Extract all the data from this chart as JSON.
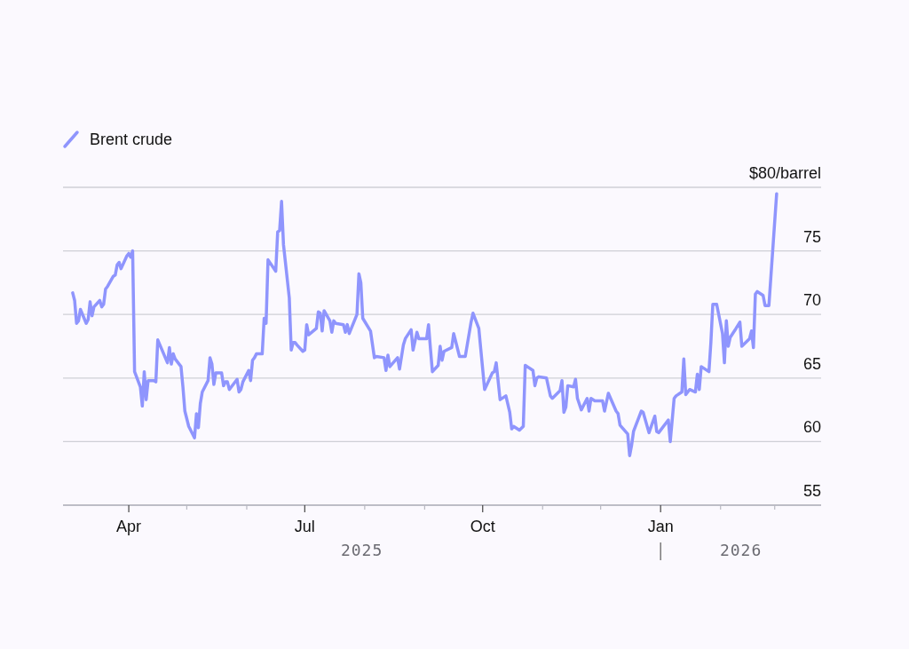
{
  "chart_data": {
    "type": "line",
    "legend": "top left",
    "grid": "y",
    "xlim": [
      "2025-02-26",
      "2026-03-25"
    ],
    "xticks": [
      {
        "value": "2025-04-01",
        "label": "Apr"
      },
      {
        "value": "2025-05-01",
        "label": null
      },
      {
        "value": "2025-06-01",
        "label": null
      },
      {
        "value": "2025-07-01",
        "label": "Jul"
      },
      {
        "value": "2025-08-01",
        "label": null
      },
      {
        "value": "2025-09-01",
        "label": null
      },
      {
        "value": "2025-10-01",
        "label": "Oct"
      },
      {
        "value": "2025-11-01",
        "label": null
      },
      {
        "value": "2025-12-01",
        "label": null
      },
      {
        "value": "2026-01-01",
        "label": "Jan"
      },
      {
        "value": "2026-02-01",
        "label": null
      },
      {
        "value": "2026-03-01",
        "label": null
      }
    ],
    "ylim": [
      55,
      80
    ],
    "yticks": [
      55,
      60,
      65,
      70,
      75,
      {
        "value": 80,
        "label": "$80/barrel"
      }
    ],
    "annotations": [
      "2025",
      "2026"
    ],
    "x": [
      "2025-03-03",
      "2025-03-04",
      "2025-03-05",
      "2025-03-06",
      "2025-03-07",
      "2025-03-10",
      "2025-03-11",
      "2025-03-12",
      "2025-03-13",
      "2025-03-14",
      "2025-03-17",
      "2025-03-18",
      "2025-03-19",
      "2025-03-20",
      "2025-03-21",
      "2025-03-24",
      "2025-03-25",
      "2025-03-26",
      "2025-03-27",
      "2025-03-28",
      "2025-03-31",
      "2025-04-01",
      "2025-04-02",
      "2025-04-03",
      "2025-04-04",
      "2025-04-07",
      "2025-04-08",
      "2025-04-09",
      "2025-04-10",
      "2025-04-11",
      "2025-04-14",
      "2025-04-15",
      "2025-04-16",
      "2025-04-21",
      "2025-04-22",
      "2025-04-23",
      "2025-04-24",
      "2025-04-25",
      "2025-04-28",
      "2025-04-29",
      "2025-04-30",
      "2025-05-02",
      "2025-05-05",
      "2025-05-06",
      "2025-05-07",
      "2025-05-08",
      "2025-05-09",
      "2025-05-12",
      "2025-05-13",
      "2025-05-14",
      "2025-05-15",
      "2025-05-16",
      "2025-05-19",
      "2025-05-20",
      "2025-05-21",
      "2025-05-22",
      "2025-05-23",
      "2025-05-27",
      "2025-05-28",
      "2025-05-29",
      "2025-05-30",
      "2025-06-02",
      "2025-06-03",
      "2025-06-04",
      "2025-06-05",
      "2025-06-06",
      "2025-06-09",
      "2025-06-10",
      "2025-06-11",
      "2025-06-12",
      "2025-06-16",
      "2025-06-17",
      "2025-06-18",
      "2025-06-19",
      "2025-06-20",
      "2025-06-23",
      "2025-06-24",
      "2025-06-25",
      "2025-06-26",
      "2025-06-27",
      "2025-06-30",
      "2025-07-01",
      "2025-07-02",
      "2025-07-03",
      "2025-07-07",
      "2025-07-08",
      "2025-07-09",
      "2025-07-10",
      "2025-07-11",
      "2025-07-14",
      "2025-07-15",
      "2025-07-16",
      "2025-07-17",
      "2025-07-21",
      "2025-07-22",
      "2025-07-23",
      "2025-07-24",
      "2025-07-28",
      "2025-07-29",
      "2025-07-30",
      "2025-07-31",
      "2025-08-04",
      "2025-08-06",
      "2025-08-07",
      "2025-08-11",
      "2025-08-12",
      "2025-08-13",
      "2025-08-14",
      "2025-08-18",
      "2025-08-19",
      "2025-08-21",
      "2025-08-22",
      "2025-08-25",
      "2025-08-26",
      "2025-08-28",
      "2025-08-29",
      "2025-09-02",
      "2025-09-03",
      "2025-09-04",
      "2025-09-05",
      "2025-09-08",
      "2025-09-09",
      "2025-09-10",
      "2025-09-11",
      "2025-09-15",
      "2025-09-16",
      "2025-09-17",
      "2025-09-19",
      "2025-09-22",
      "2025-09-25",
      "2025-09-26",
      "2025-09-29",
      "2025-09-30",
      "2025-10-02",
      "2025-10-06",
      "2025-10-07",
      "2025-10-08",
      "2025-10-10",
      "2025-10-13",
      "2025-10-15",
      "2025-10-16",
      "2025-10-17",
      "2025-10-20",
      "2025-10-22",
      "2025-10-23",
      "2025-10-24",
      "2025-10-27",
      "2025-10-28",
      "2025-10-29",
      "2025-10-30",
      "2025-11-03",
      "2025-11-05",
      "2025-11-06",
      "2025-11-10",
      "2025-11-11",
      "2025-11-12",
      "2025-11-13",
      "2025-11-14",
      "2025-11-17",
      "2025-11-18",
      "2025-11-19",
      "2025-11-21",
      "2025-11-24",
      "2025-11-25",
      "2025-11-26",
      "2025-11-28",
      "2025-12-02",
      "2025-12-03",
      "2025-12-05",
      "2025-12-09",
      "2025-12-10",
      "2025-12-11",
      "2025-12-15",
      "2025-12-16",
      "2025-12-17",
      "2025-12-18",
      "2025-12-22",
      "2025-12-23",
      "2025-12-26",
      "2025-12-29",
      "2025-12-30",
      "2025-12-31",
      "2026-01-05",
      "2026-01-06",
      "2026-01-08",
      "2026-01-09",
      "2026-01-12",
      "2026-01-13",
      "2026-01-14",
      "2026-01-16",
      "2026-01-19",
      "2026-01-20",
      "2026-01-21",
      "2026-01-22",
      "2026-01-26",
      "2026-01-27",
      "2026-01-28",
      "2026-01-30",
      "2026-02-02",
      "2026-02-03",
      "2026-02-04",
      "2026-02-05",
      "2026-02-06",
      "2026-02-09",
      "2026-02-11",
      "2026-02-12",
      "2026-02-16",
      "2026-02-17",
      "2026-02-18",
      "2026-02-19",
      "2026-02-20",
      "2026-02-23",
      "2026-02-24",
      "2026-02-26",
      "2026-03-02"
    ],
    "series": [
      {
        "name": "Brent crude",
        "color": "#8f95fd",
        "values": [
          71.7,
          71.1,
          69.3,
          69.5,
          70.4,
          69.3,
          69.6,
          71.0,
          69.9,
          70.6,
          71.1,
          70.6,
          70.8,
          72.0,
          72.2,
          73.0,
          73.1,
          73.9,
          74.1,
          73.6,
          74.6,
          74.8,
          74.5,
          75.0,
          65.5,
          64.3,
          62.8,
          65.5,
          63.3,
          64.8,
          64.8,
          64.7,
          68.0,
          66.2,
          67.4,
          66.1,
          66.9,
          66.5,
          65.9,
          64.3,
          62.4,
          61.2,
          60.3,
          62.2,
          61.1,
          63.0,
          63.9,
          64.8,
          66.6,
          66.1,
          64.5,
          65.4,
          65.4,
          64.4,
          64.7,
          64.7,
          64.1,
          64.9,
          63.9,
          64.1,
          64.7,
          65.6,
          64.8,
          66.4,
          66.6,
          66.9,
          66.9,
          69.7,
          69.3,
          74.3,
          73.4,
          76.5,
          76.6,
          78.9,
          75.5,
          71.3,
          67.2,
          67.8,
          67.8,
          67.6,
          67.1,
          67.2,
          69.2,
          68.4,
          68.9,
          70.2,
          70.1,
          68.7,
          70.3,
          69.5,
          68.6,
          69.5,
          69.3,
          69.2,
          68.6,
          69.2,
          68.5,
          70.0,
          73.2,
          72.5,
          69.7,
          68.7,
          66.6,
          66.7,
          66.6,
          65.6,
          66.8,
          65.9,
          66.6,
          65.7,
          67.6,
          68.1,
          68.8,
          67.2,
          68.6,
          68.1,
          68.1,
          69.2,
          67.3,
          65.5,
          66.0,
          67.5,
          66.4,
          67.1,
          67.4,
          68.5,
          67.9,
          66.7,
          66.7,
          69.4,
          70.1,
          68.9,
          67.3,
          64.1,
          65.4,
          65.5,
          66.2,
          63.3,
          63.6,
          62.3,
          61.0,
          61.2,
          60.9,
          61.2,
          66.0,
          65.9,
          65.6,
          64.4,
          65.0,
          65.1,
          65.0,
          63.6,
          63.4,
          64.0,
          64.8,
          62.3,
          62.7,
          64.4,
          64.3,
          64.9,
          63.4,
          62.5,
          63.4,
          62.4,
          63.4,
          63.2,
          63.2,
          62.4,
          63.8,
          62.4,
          62.2,
          61.3,
          60.6,
          58.9,
          59.7,
          60.8,
          62.4,
          62.3,
          60.7,
          62.0,
          60.8,
          60.7,
          61.7,
          60.0,
          63.4,
          63.6,
          63.9,
          66.5,
          63.7,
          64.1,
          63.9,
          65.3,
          64.1,
          65.9,
          65.5,
          67.8,
          70.8,
          70.8,
          68.5,
          66.2,
          69.5,
          67.5,
          68.2,
          68.9,
          69.4,
          67.5,
          68.1,
          68.7,
          67.4,
          71.6,
          71.8,
          71.5,
          70.7,
          70.7,
          79.5
        ]
      }
    ]
  }
}
